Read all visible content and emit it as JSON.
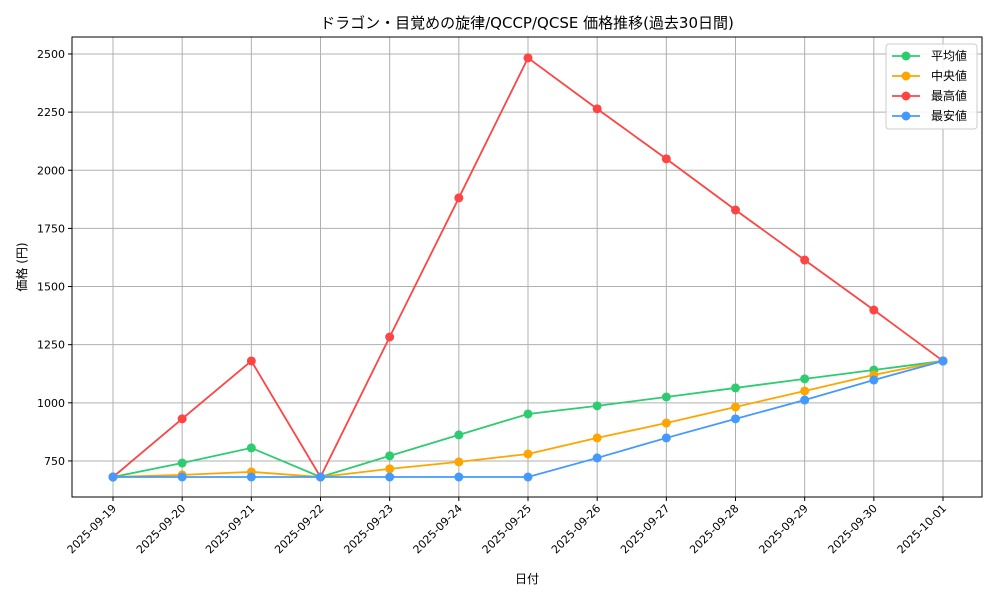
{
  "chart_data": {
    "type": "line",
    "title": "ドラゴン・目覚めの旋律/QCCP/QCSE 価格推移(過去30日間)",
    "xlabel": "日付",
    "ylabel": "価格 (円)",
    "categories": [
      "2025-09-19",
      "2025-09-20",
      "2025-09-21",
      "2025-09-22",
      "2025-09-23",
      "2025-09-24",
      "2025-09-25",
      "2025-09-26",
      "2025-09-27",
      "2025-09-28",
      "2025-09-29",
      "2025-09-30",
      "2025-10-01"
    ],
    "ylim": [
      595,
      2573
    ],
    "yticks": [
      750,
      1000,
      1250,
      1500,
      1750,
      2000,
      2250,
      2500
    ],
    "grid": true,
    "legend_position": "top-right",
    "series": [
      {
        "name": "平均値",
        "color": "#2ecc71",
        "values": [
          681,
          741,
          806,
          681,
          772,
          862,
          952,
          987,
          1025,
          1064,
          1103,
          1141,
          1180
        ]
      },
      {
        "name": "中央値",
        "color": "#ffa500",
        "values": [
          681,
          690,
          703,
          681,
          716,
          746,
          780,
          849,
          913,
          982,
          1051,
          1120,
          1180
        ]
      },
      {
        "name": "最高値",
        "color": "#ff4444",
        "values": [
          681,
          931,
          1180,
          681,
          1283,
          1881,
          2483,
          2264,
          2049,
          1829,
          1614,
          1399,
          1180
        ]
      },
      {
        "name": "最安値",
        "color": "#4499ff",
        "values": [
          681,
          681,
          681,
          681,
          681,
          681,
          681,
          763,
          849,
          931,
          1012,
          1098,
          1180
        ]
      }
    ]
  }
}
